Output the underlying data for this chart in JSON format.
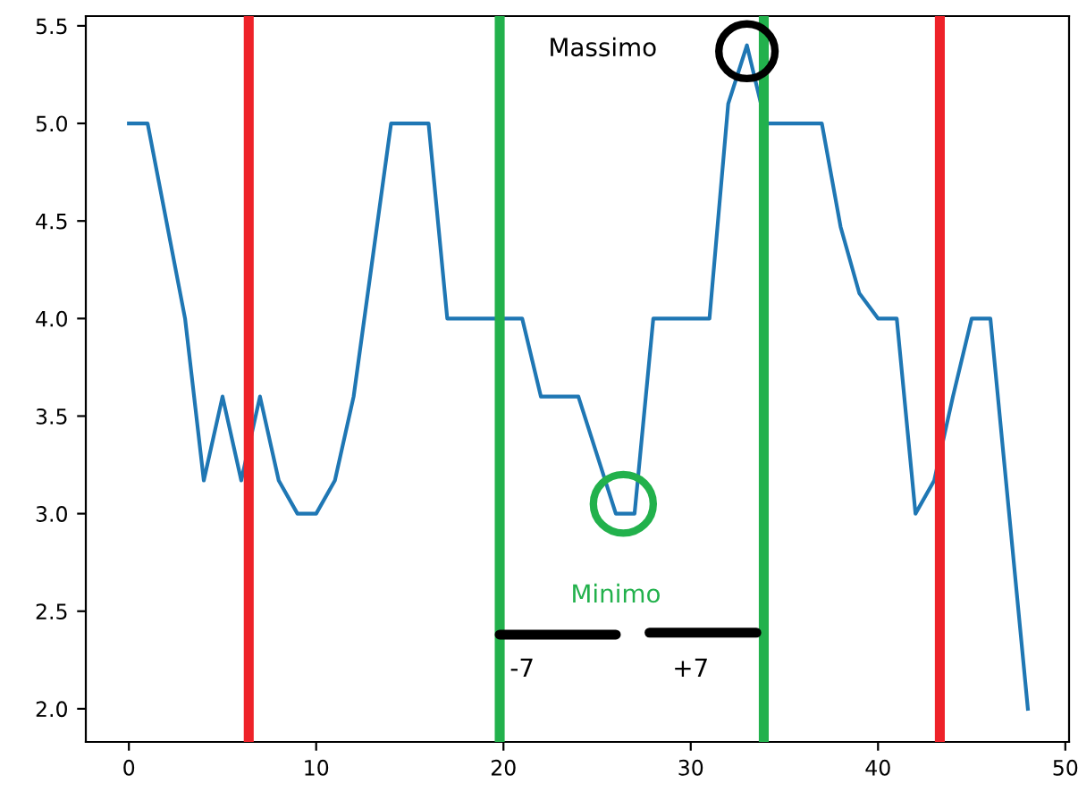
{
  "chart_data": {
    "type": "line",
    "x": [
      0,
      1,
      2,
      3,
      4,
      5,
      6,
      7,
      8,
      9,
      10,
      11,
      12,
      13,
      14,
      15,
      16,
      17,
      18,
      19,
      20,
      21,
      22,
      23,
      24,
      25,
      26,
      27,
      28,
      29,
      30,
      31,
      32,
      33,
      34,
      35,
      36,
      37,
      38,
      39,
      40,
      41,
      42,
      43,
      44,
      45,
      46,
      47,
      48
    ],
    "series": [
      {
        "color": "#1f77b4",
        "values": [
          5.0,
          5.0,
          4.5,
          4.0,
          3.17,
          3.6,
          3.17,
          3.6,
          3.17,
          3.0,
          3.0,
          3.17,
          3.6,
          4.3,
          5.0,
          5.0,
          5.0,
          4.0,
          4.0,
          4.0,
          4.0,
          4.0,
          3.6,
          3.6,
          3.6,
          3.3,
          3.0,
          3.0,
          4.0,
          4.0,
          4.0,
          4.0,
          5.1,
          5.4,
          5.0,
          5.0,
          5.0,
          5.0,
          4.47,
          4.13,
          4.0,
          4.0,
          3.0,
          3.17,
          3.6,
          4.0,
          4.0,
          3.0,
          2.0
        ]
      }
    ],
    "xlim": [
      -2.3,
      50.2
    ],
    "ylim": [
      1.83,
      5.55
    ],
    "xticks": [
      0,
      10,
      20,
      30,
      40,
      50
    ],
    "yticks": [
      {
        "value": 2,
        "label": "2.0"
      },
      2.5,
      {
        "value": 3,
        "label": "3.0"
      },
      3.5,
      {
        "value": 4,
        "label": "4.0"
      },
      4.5,
      {
        "value": 5,
        "label": "5.0"
      },
      5.5
    ],
    "ref_lines": [
      {
        "axis": "x",
        "value": 6.4,
        "color": "#ee2229"
      },
      {
        "axis": "x",
        "value": 19.8,
        "color": "#22b14c"
      },
      {
        "axis": "x",
        "value": 33.9,
        "color": "#22b14c"
      },
      {
        "axis": "x",
        "value": 43.3,
        "color": "#ee2229"
      }
    ],
    "annotations": [
      "Massimo",
      {
        "text": "Minimo",
        "x": 26,
        "y": 3.0
      },
      "-7",
      "+7"
    ],
    "grid": false,
    "marker": "none",
    "line_style": "solid"
  }
}
